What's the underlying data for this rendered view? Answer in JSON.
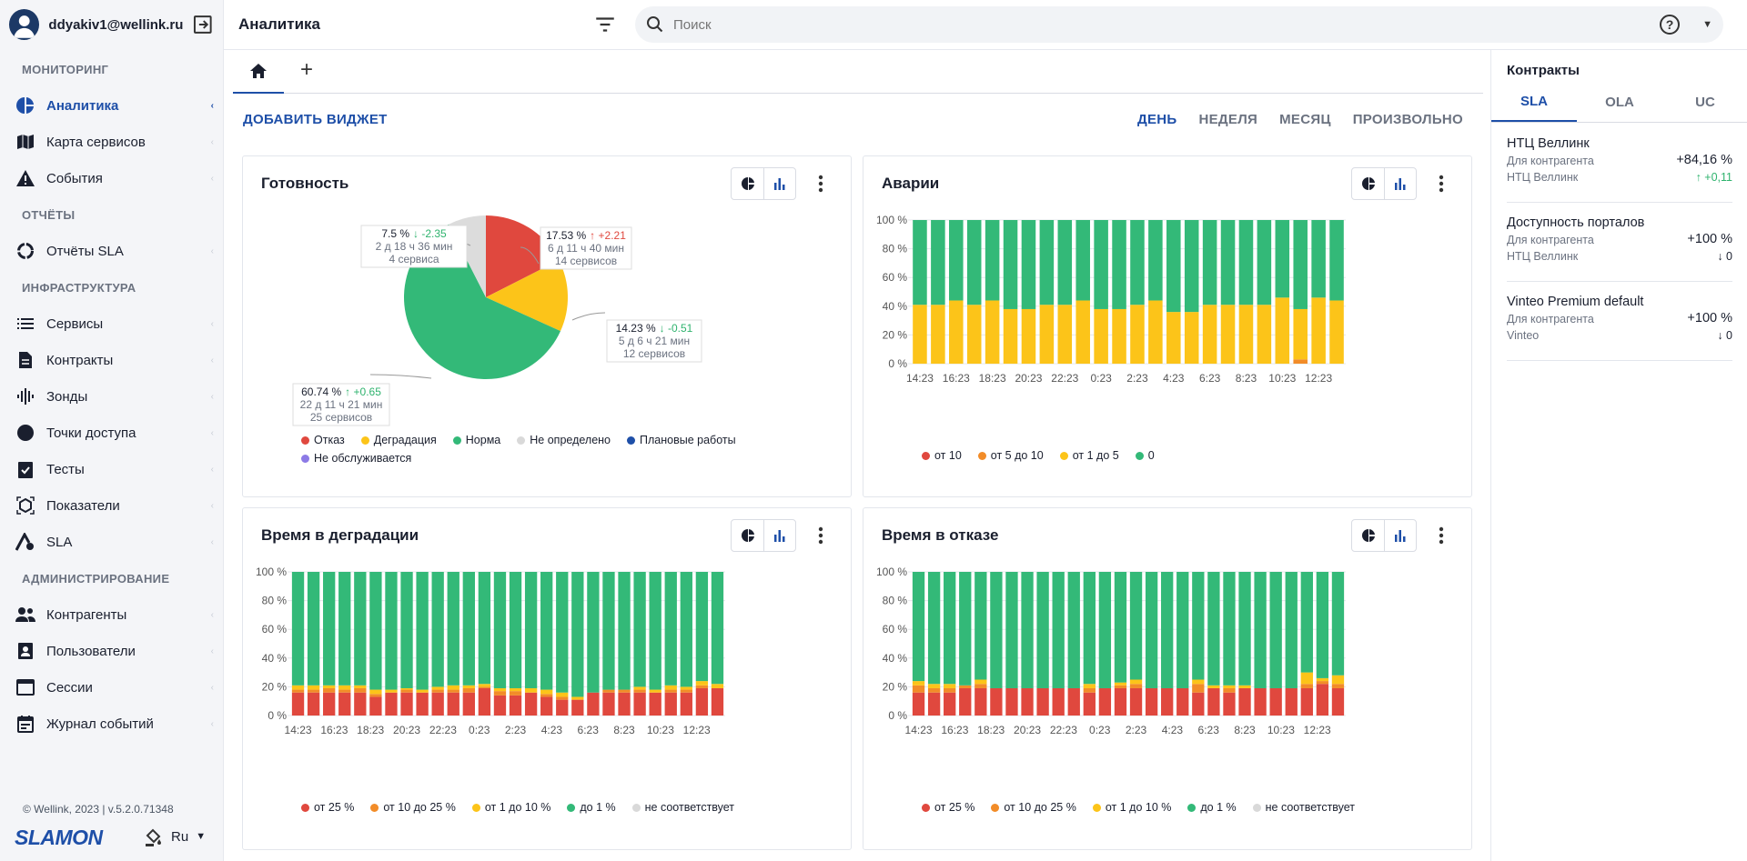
{
  "user": {
    "email": "ddyakiv1@wellink.ru"
  },
  "sidebar": {
    "sections": [
      {
        "title": "МОНИТОРИНГ",
        "items": [
          {
            "label": "Аналитика",
            "icon": "pie-icon",
            "active": true
          },
          {
            "label": "Карта сервисов",
            "icon": "map-icon"
          },
          {
            "label": "События",
            "icon": "warning-icon"
          }
        ]
      },
      {
        "title": "ОТЧЁТЫ",
        "items": [
          {
            "label": "Отчёты SLA",
            "icon": "report-icon"
          }
        ]
      },
      {
        "title": "ИНФРАСТРУКТУРА",
        "items": [
          {
            "label": "Сервисы",
            "icon": "list-icon"
          },
          {
            "label": "Контракты",
            "icon": "document-icon"
          },
          {
            "label": "Зонды",
            "icon": "probe-icon"
          },
          {
            "label": "Точки доступа",
            "icon": "circle-icon"
          },
          {
            "label": "Тесты",
            "icon": "clipboard-check-icon"
          },
          {
            "label": "Показатели",
            "icon": "cube-icon"
          },
          {
            "label": "SLA",
            "icon": "sla-icon"
          }
        ]
      },
      {
        "title": "АДМИНИСТРИРОВАНИЕ",
        "items": [
          {
            "label": "Контрагенты",
            "icon": "users-icon"
          },
          {
            "label": "Пользователи",
            "icon": "user-card-icon"
          },
          {
            "label": "Сессии",
            "icon": "window-icon"
          },
          {
            "label": "Журнал событий",
            "icon": "calendar-icon"
          }
        ]
      }
    ],
    "footer": "© Wellink, 2023 | v.5.2.0.71348",
    "brand": "SLAMON",
    "lang": "Ru"
  },
  "header": {
    "title": "Аналитика",
    "search_placeholder": "Поиск"
  },
  "toolbar": {
    "add_widget": "ДОБАВИТЬ ВИДЖЕТ",
    "periods": [
      "ДЕНЬ",
      "НЕДЕЛЯ",
      "МЕСЯЦ",
      "ПРОИЗВОЛЬНО"
    ],
    "active_period": "ДЕНЬ"
  },
  "widgets": {
    "readiness": {
      "title": "Готовность",
      "callouts": [
        {
          "pct": "17.53 %",
          "delta": "↑ +2.21",
          "dcolor": "#e0483e",
          "time": "6 д 11 ч 40 мин",
          "count": "14 сервисов"
        },
        {
          "pct": "14.23 %",
          "delta": "↓ -0.51",
          "dcolor": "#2fb36e",
          "time": "5 д 6 ч 21 мин",
          "count": "12 сервисов"
        },
        {
          "pct": "60.74 %",
          "delta": "↑ +0.65",
          "dcolor": "#2fb36e",
          "time": "22 д 11 ч 21 мин",
          "count": "25 сервисов"
        },
        {
          "pct": "7.5 %",
          "delta": "↓ -2.35",
          "dcolor": "#2fb36e",
          "time": "2 д 18 ч 36 мин",
          "count": "4 сервиса"
        }
      ],
      "legend": [
        {
          "label": "Отказ",
          "color": "#e0483e"
        },
        {
          "label": "Деградация",
          "color": "#fcc419"
        },
        {
          "label": "Норма",
          "color": "#33b978"
        },
        {
          "label": "Не определено",
          "color": "#d9d9d9"
        },
        {
          "label": "Плановые работы",
          "color": "#1e4fa8"
        },
        {
          "label": "Не обслуживается",
          "color": "#8c7ae6"
        }
      ]
    },
    "accidents": {
      "title": "Аварии",
      "legend": [
        {
          "label": "от 10",
          "color": "#e0483e"
        },
        {
          "label": "от 5 до 10",
          "color": "#f28c28"
        },
        {
          "label": "от 1 до 5",
          "color": "#fcc419"
        },
        {
          "label": "0",
          "color": "#33b978"
        }
      ]
    },
    "degradation": {
      "title": "Время в деградации",
      "legend": [
        {
          "label": "от 25 %",
          "color": "#e0483e"
        },
        {
          "label": "от 10 до 25 %",
          "color": "#f28c28"
        },
        {
          "label": "от 1 до 10 %",
          "color": "#fcc419"
        },
        {
          "label": "до 1 %",
          "color": "#33b978"
        },
        {
          "label": "не соответствует",
          "color": "#d9d9d9"
        }
      ]
    },
    "failure": {
      "title": "Время в отказе",
      "legend": [
        {
          "label": "от 25 %",
          "color": "#e0483e"
        },
        {
          "label": "от 10 до 25 %",
          "color": "#f28c28"
        },
        {
          "label": "от 1 до 10 %",
          "color": "#fcc419"
        },
        {
          "label": "до 1 %",
          "color": "#33b978"
        },
        {
          "label": "не соответствует",
          "color": "#d9d9d9"
        }
      ]
    }
  },
  "chart_data": [
    {
      "type": "pie",
      "values": [
        17.53,
        14.23,
        60.74,
        7.5
      ],
      "labels": [
        "Отказ",
        "Деградация",
        "Норма",
        "Не определено"
      ],
      "colors": [
        "#e0483e",
        "#fcc419",
        "#33b978",
        "#dcdcdc"
      ]
    },
    {
      "type": "bar",
      "stacked": true,
      "ylim": [
        0,
        100
      ],
      "yticks": [
        "0 %",
        "20 %",
        "40 %",
        "60 %",
        "80 %",
        "100 %"
      ],
      "xticks": [
        "14:23",
        "16:23",
        "18:23",
        "20:23",
        "22:23",
        "0:23",
        "2:23",
        "4:23",
        "6:23",
        "8:23",
        "10:23",
        "12:23"
      ],
      "series": [
        {
          "color": "#e0483e",
          "values": [
            0,
            0,
            0,
            0,
            0,
            0,
            0,
            0,
            0,
            0,
            0,
            0,
            0,
            0,
            0,
            0,
            0,
            0,
            0,
            0,
            0,
            0,
            0,
            0
          ]
        },
        {
          "color": "#f28c28",
          "values": [
            0,
            0,
            0,
            0,
            0,
            0,
            0,
            0,
            0,
            0,
            0,
            0,
            0,
            0,
            0,
            0,
            0,
            0,
            0,
            0,
            0,
            3,
            0,
            0
          ]
        },
        {
          "color": "#fcc419",
          "values": [
            41,
            41,
            44,
            41,
            44,
            38,
            38,
            41,
            41,
            44,
            38,
            38,
            41,
            44,
            36,
            36,
            41,
            41,
            41,
            41,
            46,
            35,
            46,
            44
          ]
        },
        {
          "color": "#33b978",
          "values": [
            59,
            59,
            56,
            59,
            56,
            62,
            62,
            59,
            59,
            56,
            62,
            62,
            59,
            56,
            64,
            64,
            59,
            59,
            59,
            59,
            54,
            62,
            54,
            56
          ]
        }
      ]
    },
    {
      "type": "bar",
      "stacked": true,
      "ylim": [
        0,
        100
      ],
      "yticks": [
        "0 %",
        "20 %",
        "40 %",
        "60 %",
        "80 %",
        "100 %"
      ],
      "xticks": [
        "14:23",
        "16:23",
        "18:23",
        "20:23",
        "22:23",
        "0:23",
        "2:23",
        "4:23",
        "6:23",
        "8:23",
        "10:23",
        "12:23"
      ],
      "series": [
        {
          "color": "#e0483e",
          "values": [
            16,
            16,
            16,
            16,
            16,
            13,
            16,
            16,
            16,
            16,
            16,
            16,
            19,
            14,
            14,
            16,
            13,
            11,
            11,
            16,
            16,
            16,
            16,
            16,
            16,
            16,
            19,
            19
          ]
        },
        {
          "color": "#f28c28",
          "values": [
            2,
            2,
            3,
            2,
            3,
            2,
            0,
            2,
            0,
            2,
            2,
            3,
            1,
            3,
            3,
            0,
            2,
            2,
            0,
            0,
            2,
            2,
            2,
            0,
            2,
            2,
            2,
            0
          ]
        },
        {
          "color": "#fcc419",
          "values": [
            3,
            3,
            2,
            3,
            2,
            3,
            2,
            1,
            2,
            2,
            3,
            2,
            2,
            2,
            2,
            3,
            3,
            3,
            2,
            0,
            0,
            0,
            2,
            2,
            3,
            2,
            3,
            3
          ]
        },
        {
          "color": "#33b978",
          "values": [
            79,
            79,
            79,
            79,
            79,
            82,
            82,
            81,
            82,
            80,
            79,
            79,
            78,
            81,
            81,
            81,
            82,
            84,
            87,
            84,
            82,
            82,
            80,
            82,
            79,
            80,
            76,
            78
          ]
        }
      ]
    },
    {
      "type": "bar",
      "stacked": true,
      "ylim": [
        0,
        100
      ],
      "yticks": [
        "0 %",
        "20 %",
        "40 %",
        "60 %",
        "80 %",
        "100 %"
      ],
      "xticks": [
        "14:23",
        "16:23",
        "18:23",
        "20:23",
        "22:23",
        "0:23",
        "2:23",
        "4:23",
        "6:23",
        "8:23",
        "10:23",
        "12:23"
      ],
      "series": [
        {
          "color": "#e0483e",
          "values": [
            16,
            16,
            16,
            19,
            19,
            19,
            19,
            19,
            19,
            19,
            19,
            16,
            19,
            19,
            19,
            19,
            19,
            19,
            16,
            19,
            16,
            19,
            19,
            19,
            19,
            19,
            22,
            19
          ]
        },
        {
          "color": "#f28c28",
          "values": [
            5,
            3,
            3,
            2,
            3,
            0,
            0,
            0,
            0,
            0,
            0,
            3,
            0,
            2,
            3,
            0,
            0,
            0,
            6,
            0,
            3,
            0,
            0,
            0,
            0,
            3,
            2,
            3
          ]
        },
        {
          "color": "#fcc419",
          "values": [
            3,
            3,
            3,
            0,
            3,
            0,
            0,
            0,
            0,
            0,
            0,
            3,
            0,
            2,
            3,
            0,
            0,
            0,
            3,
            2,
            2,
            2,
            0,
            0,
            0,
            8,
            2,
            6
          ]
        },
        {
          "color": "#33b978",
          "values": [
            76,
            78,
            78,
            79,
            75,
            81,
            81,
            81,
            81,
            81,
            81,
            78,
            81,
            77,
            75,
            81,
            81,
            81,
            75,
            79,
            79,
            79,
            81,
            81,
            81,
            70,
            74,
            72
          ]
        }
      ]
    }
  ],
  "contracts": {
    "title": "Контракты",
    "tabs": [
      "SLA",
      "OLA",
      "UC"
    ],
    "active_tab": "SLA",
    "items": [
      {
        "name": "НТЦ Веллинк",
        "l1": "Для контрагента",
        "l2": "НТЦ Веллинк",
        "v1": "+84,16 %",
        "v2": "↑ +0,11",
        "v2color": "#2fb36e"
      },
      {
        "name": "Доступность порталов",
        "l1": "Для контрагента",
        "l2": "НТЦ Веллинк",
        "v1": "+100 %",
        "v2": "↓ 0",
        "v2color": "#1a1f2e"
      },
      {
        "name": "Vinteo Premium default",
        "l1": "Для контрагента",
        "l2": "Vinteo",
        "v1": "+100 %",
        "v2": "↓ 0",
        "v2color": "#1a1f2e"
      }
    ]
  }
}
